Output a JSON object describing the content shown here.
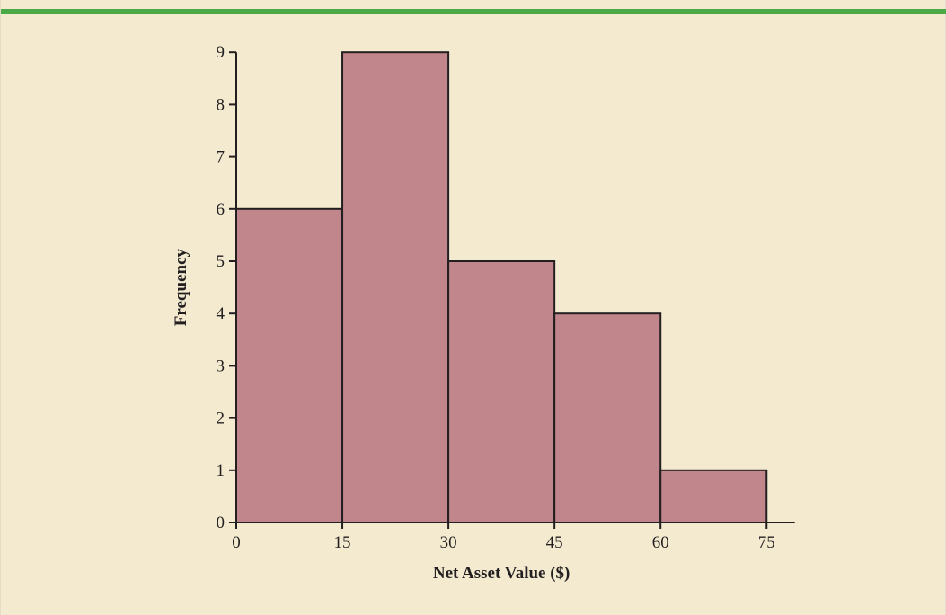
{
  "colors": {
    "background": "#f3ead0",
    "accent_rule": "#4aab46",
    "bar_fill": "#c1868b",
    "bar_stroke": "#231f20",
    "axis": "#231f20"
  },
  "chart_data": {
    "type": "bar",
    "subtype": "histogram",
    "bins": [
      {
        "start": 0,
        "end": 15,
        "frequency": 6
      },
      {
        "start": 15,
        "end": 30,
        "frequency": 9
      },
      {
        "start": 30,
        "end": 45,
        "frequency": 5
      },
      {
        "start": 45,
        "end": 60,
        "frequency": 4
      },
      {
        "start": 60,
        "end": 75,
        "frequency": 1
      }
    ],
    "xlabel": "Net Asset Value ($)",
    "ylabel": "Frequency",
    "xlim": [
      0,
      79
    ],
    "ylim": [
      0,
      9
    ],
    "x_ticks": [
      "0",
      "15",
      "30",
      "45",
      "60",
      "75"
    ],
    "y_ticks": [
      "0",
      "1",
      "2",
      "3",
      "4",
      "5",
      "6",
      "7",
      "8",
      "9"
    ],
    "grid": false,
    "legend": "none"
  }
}
